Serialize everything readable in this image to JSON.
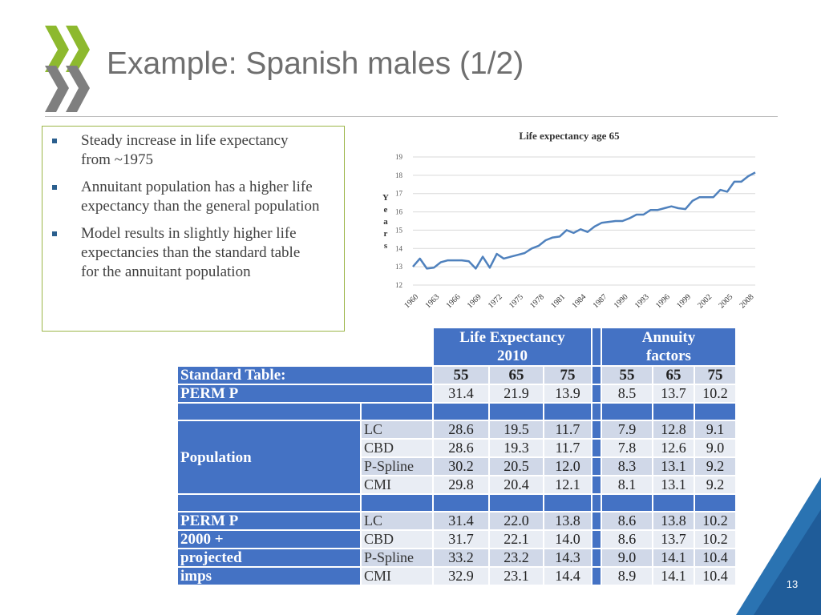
{
  "slide": {
    "title": "Example: Spanish males (1/2)",
    "page_number": "13",
    "colors": {
      "accent_green": "#8db92e",
      "logo_gray": "#7f7f7f",
      "table_blue": "#4472c4",
      "corner_blue": "#1f5c99",
      "line_blue": "#4f81bd"
    }
  },
  "bullets": [
    "Steady increase in life expectancy from ~1975",
    "Annuitant population has a higher life expectancy than the general population",
    "Model results in slightly higher life expectancies than the standard table for the annuitant population"
  ],
  "chart_data": {
    "type": "line",
    "title": "Life expectancy age 65",
    "xlabel": "",
    "ylabel": "Years",
    "ylabel_letters": [
      "Y",
      "e",
      "a",
      "r",
      "s"
    ],
    "ylim": [
      12,
      19
    ],
    "yticks": [
      12,
      13,
      14,
      15,
      16,
      17,
      18,
      19
    ],
    "xlim": [
      1960,
      2009
    ],
    "xticks": [
      1960,
      1963,
      1966,
      1969,
      1972,
      1975,
      1978,
      1981,
      1984,
      1987,
      1990,
      1993,
      1996,
      1999,
      2002,
      2005,
      2008
    ],
    "grid": "horizontal",
    "series": [
      {
        "name": "Life expectancy age 65",
        "x": [
          1960,
          1961,
          1962,
          1963,
          1964,
          1965,
          1966,
          1967,
          1968,
          1969,
          1970,
          1971,
          1972,
          1973,
          1974,
          1975,
          1976,
          1977,
          1978,
          1979,
          1980,
          1981,
          1982,
          1983,
          1984,
          1985,
          1986,
          1987,
          1988,
          1989,
          1990,
          1991,
          1992,
          1993,
          1994,
          1995,
          1996,
          1997,
          1998,
          1999,
          2000,
          2001,
          2002,
          2003,
          2004,
          2005,
          2006,
          2007,
          2008,
          2009
        ],
        "values": [
          13.0,
          13.45,
          12.9,
          12.95,
          13.25,
          13.35,
          13.35,
          13.35,
          13.3,
          12.9,
          13.55,
          12.95,
          13.7,
          13.45,
          13.55,
          13.65,
          13.75,
          14.0,
          14.15,
          14.45,
          14.6,
          14.65,
          15.0,
          14.85,
          15.05,
          14.9,
          15.2,
          15.4,
          15.45,
          15.5,
          15.5,
          15.65,
          15.85,
          15.85,
          16.1,
          16.1,
          16.2,
          16.3,
          16.2,
          16.15,
          16.6,
          16.8,
          16.8,
          16.8,
          17.2,
          17.1,
          17.65,
          17.65,
          17.95,
          18.15
        ]
      }
    ]
  },
  "table": {
    "header_le": "Life Expectancy 2010",
    "header_af": "Annuity factors",
    "ages": [
      "55",
      "65",
      "75"
    ],
    "standard_label": "Standard Table:",
    "perm_label": "PERM P",
    "perm_le": [
      "31.4",
      "21.9",
      "13.9"
    ],
    "perm_af": [
      "8.5",
      "13.7",
      "10.2"
    ],
    "population_label": "Population",
    "population_rows": [
      {
        "model": "LC",
        "le": [
          "28.6",
          "19.5",
          "11.7"
        ],
        "af": [
          "7.9",
          "12.8",
          "9.1"
        ]
      },
      {
        "model": "CBD",
        "le": [
          "28.6",
          "19.3",
          "11.7"
        ],
        "af": [
          "7.8",
          "12.6",
          "9.0"
        ]
      },
      {
        "model": "P-Spline",
        "le": [
          "30.2",
          "20.5",
          "12.0"
        ],
        "af": [
          "8.3",
          "13.1",
          "9.2"
        ]
      },
      {
        "model": "CMI",
        "le": [
          "29.8",
          "20.4",
          "12.1"
        ],
        "af": [
          "8.1",
          "13.1",
          "9.2"
        ]
      }
    ],
    "projected_label_lines": [
      "PERM P",
      "2000 +",
      "projected",
      "imps"
    ],
    "projected_rows": [
      {
        "model": "LC",
        "le": [
          "31.4",
          "22.0",
          "13.8"
        ],
        "af": [
          "8.6",
          "13.8",
          "10.2"
        ]
      },
      {
        "model": "CBD",
        "le": [
          "31.7",
          "22.1",
          "14.0"
        ],
        "af": [
          "8.6",
          "13.7",
          "10.2"
        ]
      },
      {
        "model": "P-Spline",
        "le": [
          "33.2",
          "23.2",
          "14.3"
        ],
        "af": [
          "9.0",
          "14.1",
          "10.4"
        ]
      },
      {
        "model": "CMI",
        "le": [
          "32.9",
          "23.1",
          "14.4"
        ],
        "af": [
          "8.9",
          "14.1",
          "10.4"
        ]
      }
    ]
  }
}
